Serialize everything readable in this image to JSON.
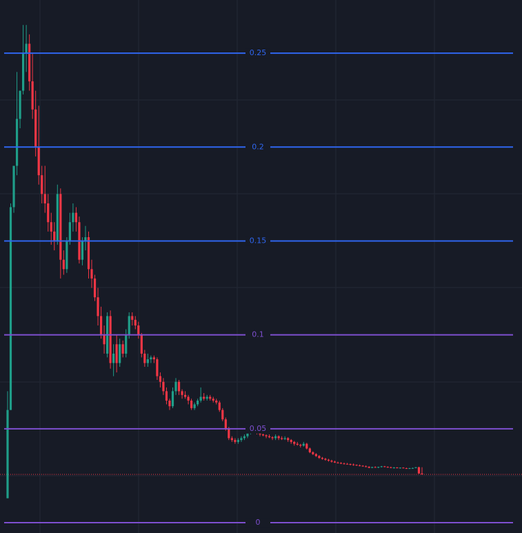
{
  "chart_data": {
    "type": "candlestick",
    "ylim": [
      -0.0055,
      0.2783
    ],
    "up_color": "#1f9e89",
    "down_color": "#f23645",
    "levels": [
      {
        "value": 0.25,
        "color": "#2f66f0"
      },
      {
        "value": 0.2,
        "color": "#2f66f0"
      },
      {
        "value": 0.15,
        "color": "#2f66f0"
      },
      {
        "value": 0.1,
        "color": "#7e4fd0"
      },
      {
        "value": 0.05,
        "color": "#7e4fd0"
      },
      {
        "value": 0,
        "color": "#7e4fd0"
      }
    ],
    "price_line": 0.0257,
    "candles": [
      [
        0.013,
        0.07,
        0.013,
        0.06
      ],
      [
        0.06,
        0.17,
        0.06,
        0.168
      ],
      [
        0.168,
        0.19,
        0.165,
        0.19
      ],
      [
        0.19,
        0.24,
        0.185,
        0.215
      ],
      [
        0.215,
        0.23,
        0.21,
        0.23
      ],
      [
        0.23,
        0.265,
        0.228,
        0.25
      ],
      [
        0.25,
        0.265,
        0.24,
        0.255
      ],
      [
        0.255,
        0.26,
        0.23,
        0.235
      ],
      [
        0.235,
        0.25,
        0.215,
        0.22
      ],
      [
        0.22,
        0.23,
        0.195,
        0.2
      ],
      [
        0.2,
        0.222,
        0.18,
        0.185
      ],
      [
        0.185,
        0.19,
        0.17,
        0.175
      ],
      [
        0.175,
        0.19,
        0.165,
        0.17
      ],
      [
        0.17,
        0.175,
        0.155,
        0.16
      ],
      [
        0.16,
        0.165,
        0.148,
        0.155
      ],
      [
        0.155,
        0.16,
        0.145,
        0.15
      ],
      [
        0.15,
        0.18,
        0.148,
        0.175
      ],
      [
        0.175,
        0.178,
        0.13,
        0.14
      ],
      [
        0.14,
        0.145,
        0.132,
        0.135
      ],
      [
        0.135,
        0.152,
        0.133,
        0.15
      ],
      [
        0.15,
        0.165,
        0.148,
        0.16
      ],
      [
        0.16,
        0.17,
        0.155,
        0.165
      ],
      [
        0.165,
        0.168,
        0.155,
        0.16
      ],
      [
        0.16,
        0.163,
        0.138,
        0.14
      ],
      [
        0.14,
        0.152,
        0.137,
        0.15
      ],
      [
        0.15,
        0.158,
        0.145,
        0.152
      ],
      [
        0.152,
        0.155,
        0.13,
        0.135
      ],
      [
        0.135,
        0.14,
        0.125,
        0.13
      ],
      [
        0.13,
        0.132,
        0.118,
        0.12
      ],
      [
        0.12,
        0.125,
        0.105,
        0.11
      ],
      [
        0.11,
        0.115,
        0.098,
        0.1
      ],
      [
        0.1,
        0.105,
        0.09,
        0.095
      ],
      [
        0.09,
        0.112,
        0.088,
        0.11
      ],
      [
        0.11,
        0.113,
        0.082,
        0.085
      ],
      [
        0.085,
        0.095,
        0.078,
        0.09
      ],
      [
        0.095,
        0.1,
        0.08,
        0.085
      ],
      [
        0.085,
        0.098,
        0.083,
        0.095
      ],
      [
        0.095,
        0.097,
        0.088,
        0.09
      ],
      [
        0.09,
        0.103,
        0.088,
        0.1
      ],
      [
        0.1,
        0.112,
        0.098,
        0.11
      ],
      [
        0.11,
        0.112,
        0.105,
        0.108
      ],
      [
        0.108,
        0.11,
        0.103,
        0.105
      ],
      [
        0.105,
        0.107,
        0.098,
        0.1
      ],
      [
        0.1,
        0.101,
        0.088,
        0.09
      ],
      [
        0.09,
        0.092,
        0.083,
        0.085
      ],
      [
        0.085,
        0.09,
        0.083,
        0.087
      ],
      [
        0.087,
        0.089,
        0.085,
        0.088
      ],
      [
        0.088,
        0.089,
        0.085,
        0.087
      ],
      [
        0.087,
        0.088,
        0.076,
        0.078
      ],
      [
        0.078,
        0.08,
        0.072,
        0.075
      ],
      [
        0.075,
        0.077,
        0.068,
        0.07
      ],
      [
        0.07,
        0.072,
        0.063,
        0.065
      ],
      [
        0.065,
        0.066,
        0.06,
        0.062
      ],
      [
        0.062,
        0.072,
        0.061,
        0.07
      ],
      [
        0.07,
        0.077,
        0.068,
        0.075
      ],
      [
        0.075,
        0.076,
        0.068,
        0.07
      ],
      [
        0.07,
        0.071,
        0.066,
        0.068
      ],
      [
        0.068,
        0.07,
        0.066,
        0.067
      ],
      [
        0.067,
        0.068,
        0.063,
        0.065
      ],
      [
        0.065,
        0.066,
        0.06,
        0.061
      ],
      [
        0.061,
        0.064,
        0.06,
        0.063
      ],
      [
        0.063,
        0.066,
        0.062,
        0.065
      ],
      [
        0.065,
        0.072,
        0.064,
        0.067
      ],
      [
        0.067,
        0.069,
        0.065,
        0.066
      ],
      [
        0.066,
        0.068,
        0.065,
        0.067
      ],
      [
        0.067,
        0.068,
        0.065,
        0.066
      ],
      [
        0.066,
        0.067,
        0.064,
        0.065
      ],
      [
        0.065,
        0.066,
        0.063,
        0.064
      ],
      [
        0.064,
        0.065,
        0.059,
        0.06
      ],
      [
        0.06,
        0.061,
        0.054,
        0.055
      ],
      [
        0.055,
        0.056,
        0.049,
        0.05
      ],
      [
        0.05,
        0.051,
        0.044,
        0.045
      ],
      [
        0.045,
        0.046,
        0.043,
        0.044
      ],
      [
        0.044,
        0.045,
        0.042,
        0.043
      ],
      [
        0.043,
        0.045,
        0.042,
        0.044
      ],
      [
        0.044,
        0.046,
        0.043,
        0.045
      ],
      [
        0.045,
        0.047,
        0.044,
        0.046
      ],
      [
        0.046,
        0.049,
        0.045,
        0.048
      ],
      [
        0.048,
        0.05,
        0.047,
        0.049
      ],
      [
        0.049,
        0.05,
        0.048,
        0.0485
      ],
      [
        0.0485,
        0.049,
        0.047,
        0.048
      ],
      [
        0.048,
        0.0485,
        0.046,
        0.047
      ],
      [
        0.047,
        0.048,
        0.046,
        0.0465
      ],
      [
        0.0465,
        0.047,
        0.045,
        0.046
      ],
      [
        0.046,
        0.047,
        0.045,
        0.0455
      ],
      [
        0.0455,
        0.046,
        0.044,
        0.045
      ],
      [
        0.045,
        0.047,
        0.044,
        0.046
      ],
      [
        0.046,
        0.0465,
        0.044,
        0.045
      ],
      [
        0.045,
        0.046,
        0.044,
        0.0445
      ],
      [
        0.0445,
        0.046,
        0.044,
        0.045
      ],
      [
        0.045,
        0.0455,
        0.043,
        0.044
      ],
      [
        0.044,
        0.0445,
        0.042,
        0.043
      ],
      [
        0.043,
        0.0435,
        0.041,
        0.042
      ],
      [
        0.042,
        0.043,
        0.041,
        0.0415
      ],
      [
        0.0415,
        0.042,
        0.04,
        0.041
      ],
      [
        0.041,
        0.043,
        0.0405,
        0.042
      ],
      [
        0.042,
        0.0425,
        0.039,
        0.0395
      ],
      [
        0.0395,
        0.04,
        0.037,
        0.0375
      ],
      [
        0.0375,
        0.038,
        0.036,
        0.0365
      ],
      [
        0.0365,
        0.037,
        0.035,
        0.0355
      ],
      [
        0.0355,
        0.036,
        0.034,
        0.0345
      ],
      [
        0.0345,
        0.035,
        0.0335,
        0.034
      ],
      [
        0.034,
        0.0345,
        0.033,
        0.0335
      ],
      [
        0.0335,
        0.034,
        0.0325,
        0.033
      ],
      [
        0.033,
        0.0335,
        0.032,
        0.0325
      ],
      [
        0.0325,
        0.033,
        0.0318,
        0.032
      ],
      [
        0.032,
        0.0325,
        0.0315,
        0.0318
      ],
      [
        0.0318,
        0.0322,
        0.0312,
        0.0315
      ],
      [
        0.0315,
        0.032,
        0.031,
        0.0313
      ],
      [
        0.0313,
        0.0318,
        0.031,
        0.0312
      ],
      [
        0.0312,
        0.0315,
        0.0305,
        0.031
      ],
      [
        0.031,
        0.0315,
        0.0303,
        0.0308
      ],
      [
        0.0308,
        0.031,
        0.0302,
        0.0305
      ],
      [
        0.0305,
        0.031,
        0.03,
        0.0303
      ],
      [
        0.0303,
        0.0306,
        0.0298,
        0.03
      ],
      [
        0.03,
        0.0305,
        0.0295,
        0.0298
      ],
      [
        0.0298,
        0.03,
        0.029,
        0.0292
      ],
      [
        0.0292,
        0.0298,
        0.029,
        0.0296
      ],
      [
        0.0296,
        0.03,
        0.0292,
        0.0294
      ],
      [
        0.0294,
        0.0298,
        0.029,
        0.0297
      ],
      [
        0.0297,
        0.0302,
        0.0294,
        0.03
      ],
      [
        0.03,
        0.0302,
        0.0295,
        0.0297
      ],
      [
        0.0297,
        0.03,
        0.0292,
        0.0295
      ],
      [
        0.0295,
        0.0298,
        0.029,
        0.0292
      ],
      [
        0.0292,
        0.0296,
        0.0288,
        0.0294
      ],
      [
        0.0294,
        0.0296,
        0.0289,
        0.0291
      ],
      [
        0.0291,
        0.0294,
        0.0288,
        0.0293
      ],
      [
        0.0293,
        0.0295,
        0.0289,
        0.029
      ],
      [
        0.029,
        0.0293,
        0.0286,
        0.0288
      ],
      [
        0.0288,
        0.0292,
        0.0286,
        0.029
      ],
      [
        0.029,
        0.0293,
        0.0287,
        0.0291
      ],
      [
        0.0291,
        0.0296,
        0.029,
        0.0295
      ],
      [
        0.0295,
        0.0298,
        0.026,
        0.0262
      ],
      [
        0.0262,
        0.0295,
        0.0255,
        0.0257
      ]
    ]
  }
}
